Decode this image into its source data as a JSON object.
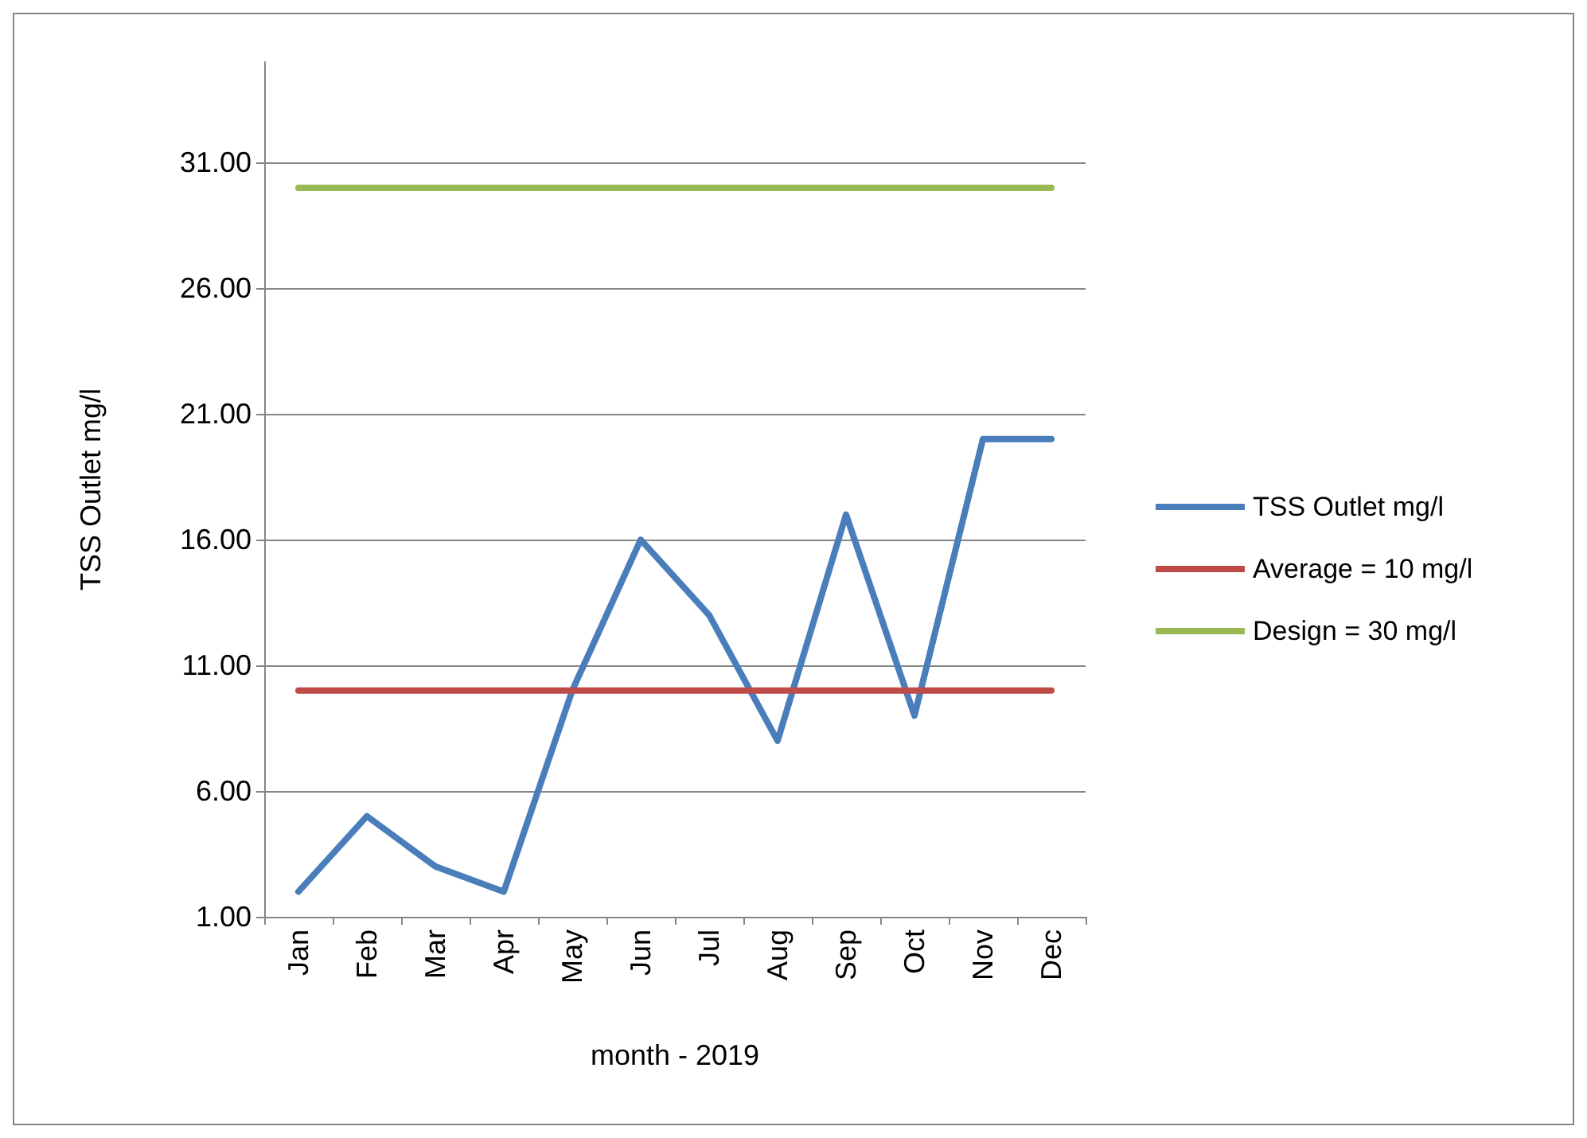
{
  "chart_data": {
    "type": "line",
    "xlabel": "month - 2019",
    "ylabel": "TSS Outlet mg/l",
    "categories": [
      "Jan",
      "Feb",
      "Mar",
      "Apr",
      "May",
      "Jun",
      "Jul",
      "Aug",
      "Sep",
      "Oct",
      "Nov",
      "Dec"
    ],
    "series": [
      {
        "name": "TSS Outlet mg/l",
        "color": "#4a7ebb",
        "values": [
          2,
          5,
          3,
          2,
          10,
          16,
          13,
          8,
          17,
          9,
          20,
          20
        ]
      },
      {
        "name": "Average = 10 mg/l",
        "color": "#be4b48",
        "values": [
          10,
          10,
          10,
          10,
          10,
          10,
          10,
          10,
          10,
          10,
          10,
          10
        ]
      },
      {
        "name": "Design = 30 mg/l",
        "color": "#98b954",
        "values": [
          30,
          30,
          30,
          30,
          30,
          30,
          30,
          30,
          30,
          30,
          30,
          30
        ]
      }
    ],
    "ylim": [
      1,
      35
    ],
    "yticks": [
      {
        "value": 1,
        "label": "1.00"
      },
      {
        "value": 6,
        "label": "6.00"
      },
      {
        "value": 11,
        "label": "11.00"
      },
      {
        "value": 16,
        "label": "16.00"
      },
      {
        "value": 21,
        "label": "21.00"
      },
      {
        "value": 26,
        "label": "26.00"
      },
      {
        "value": 31,
        "label": "31.00"
      }
    ],
    "grid": "y",
    "legend": "right",
    "marker": "none",
    "line_style": "solid"
  }
}
